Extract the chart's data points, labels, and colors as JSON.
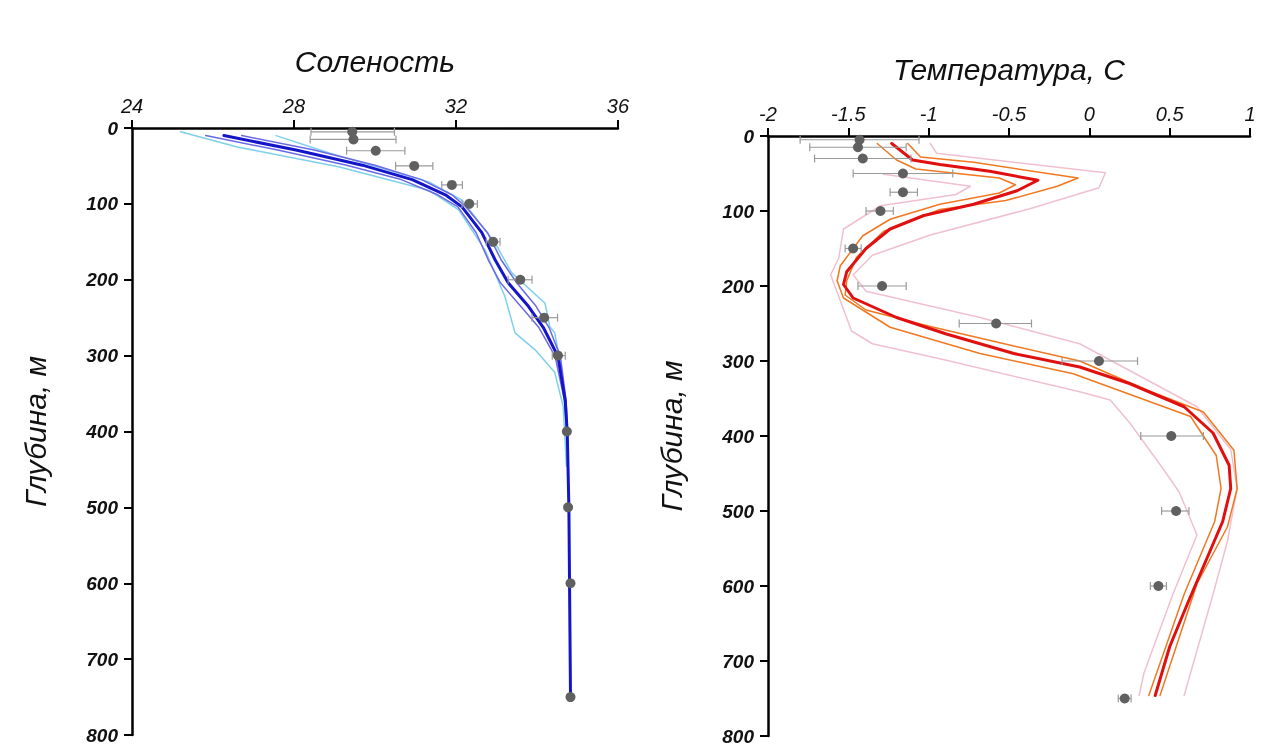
{
  "chart_data": [
    {
      "type": "line",
      "xlabel": "Соленость",
      "ylabel": "Глубина, м",
      "xlim": [
        24,
        36
      ],
      "xticks": [
        24,
        28,
        32,
        36
      ],
      "ylim": [
        800,
        0
      ],
      "yticks": [
        0,
        100,
        200,
        300,
        400,
        500,
        600,
        700,
        800
      ],
      "series": [
        {
          "color": "#1414c8",
          "x": [
            26.27,
            28.05,
            29.69,
            30.92,
            31.74,
            32.15,
            32.64,
            32.97,
            33.29,
            33.79,
            34.16,
            34.52,
            34.7,
            34.75,
            34.79,
            34.83
          ],
          "values": [
            10,
            29,
            49,
            68,
            88,
            104,
            138,
            174,
            204,
            235,
            263,
            301,
            359,
            402,
            500,
            750
          ]
        },
        {
          "color": "#6a6ae6",
          "x": [
            25.82,
            27.6,
            29.3,
            30.65,
            31.55,
            32.05,
            32.5,
            32.8,
            33.1,
            33.6,
            34.05,
            34.45,
            34.68,
            34.74
          ],
          "values": [
            10,
            29,
            49,
            68,
            88,
            104,
            138,
            174,
            204,
            235,
            263,
            301,
            359,
            402
          ]
        },
        {
          "color": "#6a6ae6",
          "x": [
            26.71,
            28.5,
            30.0,
            31.15,
            31.9,
            32.25,
            32.78,
            33.12,
            33.5,
            33.98,
            34.3,
            34.58,
            34.72,
            34.76
          ],
          "values": [
            10,
            29,
            49,
            68,
            88,
            104,
            138,
            174,
            204,
            235,
            263,
            301,
            359,
            402
          ]
        },
        {
          "color": "#7ecfea",
          "x": [
            25.2,
            26.6,
            29.1,
            31.33,
            32.07,
            32.72,
            33.21,
            33.46,
            33.95,
            34.44,
            34.65,
            34.73
          ],
          "values": [
            5,
            25,
            51,
            82,
            108,
            161,
            222,
            270,
            292,
            322,
            367,
            446
          ]
        },
        {
          "color": "#7ecfea",
          "x": [
            27.56,
            28.87,
            31.33,
            32.15,
            32.97,
            33.38,
            34.2,
            34.32,
            34.44,
            34.6,
            34.73
          ],
          "values": [
            10,
            33,
            71,
            95,
            152,
            191,
            231,
            262,
            270,
            315,
            372
          ]
        },
        {
          "type": "scatter",
          "color": "#606060",
          "x": [
            29.44,
            29.47,
            30.02,
            30.97,
            31.9,
            32.33,
            32.92,
            33.59,
            34.18,
            34.52,
            34.74,
            34.77,
            34.83,
            34.83
          ],
          "values": [
            5,
            15,
            30,
            50,
            75,
            100,
            150,
            200,
            250,
            300,
            400,
            500,
            600,
            750
          ],
          "xerrors": [
            [
              28.42,
              30.48
            ],
            [
              28.4,
              30.52
            ],
            [
              29.3,
              30.74
            ],
            [
              30.51,
              31.43
            ],
            [
              31.65,
              32.16
            ],
            [
              32.15,
              32.53
            ],
            [
              32.75,
              33.09
            ],
            [
              33.29,
              33.88
            ],
            [
              33.88,
              34.51
            ],
            [
              34.38,
              34.7
            ],
            null,
            null,
            null,
            null
          ]
        }
      ]
    },
    {
      "type": "line",
      "xlabel": "Температура, С",
      "ylabel": "Глубина, м",
      "xlim": [
        -2,
        1
      ],
      "xticks": [
        -2,
        -1.5,
        -1,
        -0.5,
        0,
        0.5,
        1
      ],
      "ylim": [
        800,
        0
      ],
      "yticks": [
        0,
        100,
        200,
        300,
        400,
        500,
        600,
        700,
        800
      ],
      "series": [
        {
          "color": "#e01010",
          "x": [
            -1.23,
            -1.1,
            -0.93,
            -0.62,
            -0.32,
            -0.45,
            -0.72,
            -1.03,
            -1.24,
            -1.39,
            -1.51,
            -1.53,
            -1.47,
            -1.2,
            -0.89,
            -0.47,
            -0.06,
            0.25,
            0.59,
            0.77,
            0.87,
            0.88,
            0.83,
            0.75,
            0.61,
            0.5,
            0.41
          ],
          "values": [
            10,
            32,
            38,
            47,
            59,
            73,
            91,
            106,
            124,
            150,
            181,
            198,
            216,
            242,
            264,
            290,
            308,
            330,
            361,
            396,
            439,
            470,
            514,
            554,
            624,
            681,
            746
          ]
        },
        {
          "color": "#f07820",
          "x": [
            -1.32,
            -1.2,
            -1.08,
            -0.56,
            -0.46,
            -0.56,
            -0.93,
            -1.24,
            -1.41,
            -1.55,
            -1.57,
            -1.53,
            -1.24,
            -0.68,
            -0.1,
            0.63,
            0.79,
            0.82,
            0.78,
            0.59,
            0.37
          ],
          "values": [
            10,
            32,
            44,
            56,
            65,
            76,
            91,
            111,
            133,
            173,
            193,
            216,
            255,
            290,
            317,
            374,
            426,
            470,
            514,
            611,
            746
          ]
        },
        {
          "color": "#f07820",
          "x": [
            -1.13,
            -1.05,
            -0.72,
            -0.07,
            -0.2,
            -0.52,
            -0.93,
            -1.28,
            -1.45,
            -1.51,
            -1.52,
            -1.39,
            -0.99,
            -0.47,
            -0.06,
            0.36,
            0.71,
            0.9,
            0.92,
            0.86,
            0.67,
            0.44
          ],
          "values": [
            10,
            28,
            35,
            56,
            67,
            86,
            98,
            127,
            162,
            193,
            212,
            232,
            254,
            280,
            300,
            339,
            368,
            419,
            470,
            521,
            597,
            746
          ]
        },
        {
          "color": "#f0c0d0",
          "x": [
            -1.28,
            -0.74,
            -0.83,
            -1.3,
            -1.53,
            -1.56,
            -1.61,
            -1.48,
            -1.35,
            -0.89,
            -0.06,
            0.13,
            0.25,
            0.46,
            0.56,
            0.67,
            0.52,
            0.34,
            0.31
          ],
          "values": [
            51,
            67,
            78,
            93,
            124,
            163,
            185,
            260,
            277,
            299,
            341,
            352,
            382,
            444,
            475,
            532,
            611,
            716,
            746
          ]
        },
        {
          "color": "#f0c0d0",
          "x": [
            -0.99,
            -0.95,
            0.1,
            0.06,
            -0.37,
            -0.99,
            -1.35,
            -1.47,
            -1.39,
            -0.68,
            -0.06,
            0.67,
            0.88,
            0.92,
            0.86,
            0.77,
            0.59
          ],
          "values": [
            10,
            23,
            49,
            69,
            97,
            132,
            159,
            185,
            207,
            242,
            277,
            361,
            418,
            470,
            540,
            611,
            746
          ]
        },
        {
          "type": "scatter",
          "color": "#606060",
          "x": [
            -1.43,
            -1.44,
            -1.41,
            -1.16,
            -1.16,
            -1.3,
            -1.47,
            -1.29,
            -0.58,
            0.06,
            0.51,
            0.54,
            0.43,
            0.22
          ],
          "values": [
            5,
            15,
            30,
            50,
            75,
            100,
            150,
            200,
            250,
            300,
            400,
            500,
            600,
            750
          ],
          "xerrors": [
            [
              -1.8,
              -1.06
            ],
            [
              -1.74,
              -1.14
            ],
            [
              -1.71,
              -1.11
            ],
            [
              -1.47,
              -0.85
            ],
            [
              -1.24,
              -1.07
            ],
            [
              -1.39,
              -1.22
            ],
            [
              -1.52,
              -1.42
            ],
            [
              -1.44,
              -1.14
            ],
            [
              -0.81,
              -0.36
            ],
            [
              -0.17,
              0.3
            ],
            [
              0.32,
              0.71
            ],
            [
              0.45,
              0.62
            ],
            [
              0.38,
              0.48
            ],
            [
              0.18,
              0.26
            ]
          ]
        }
      ]
    }
  ]
}
